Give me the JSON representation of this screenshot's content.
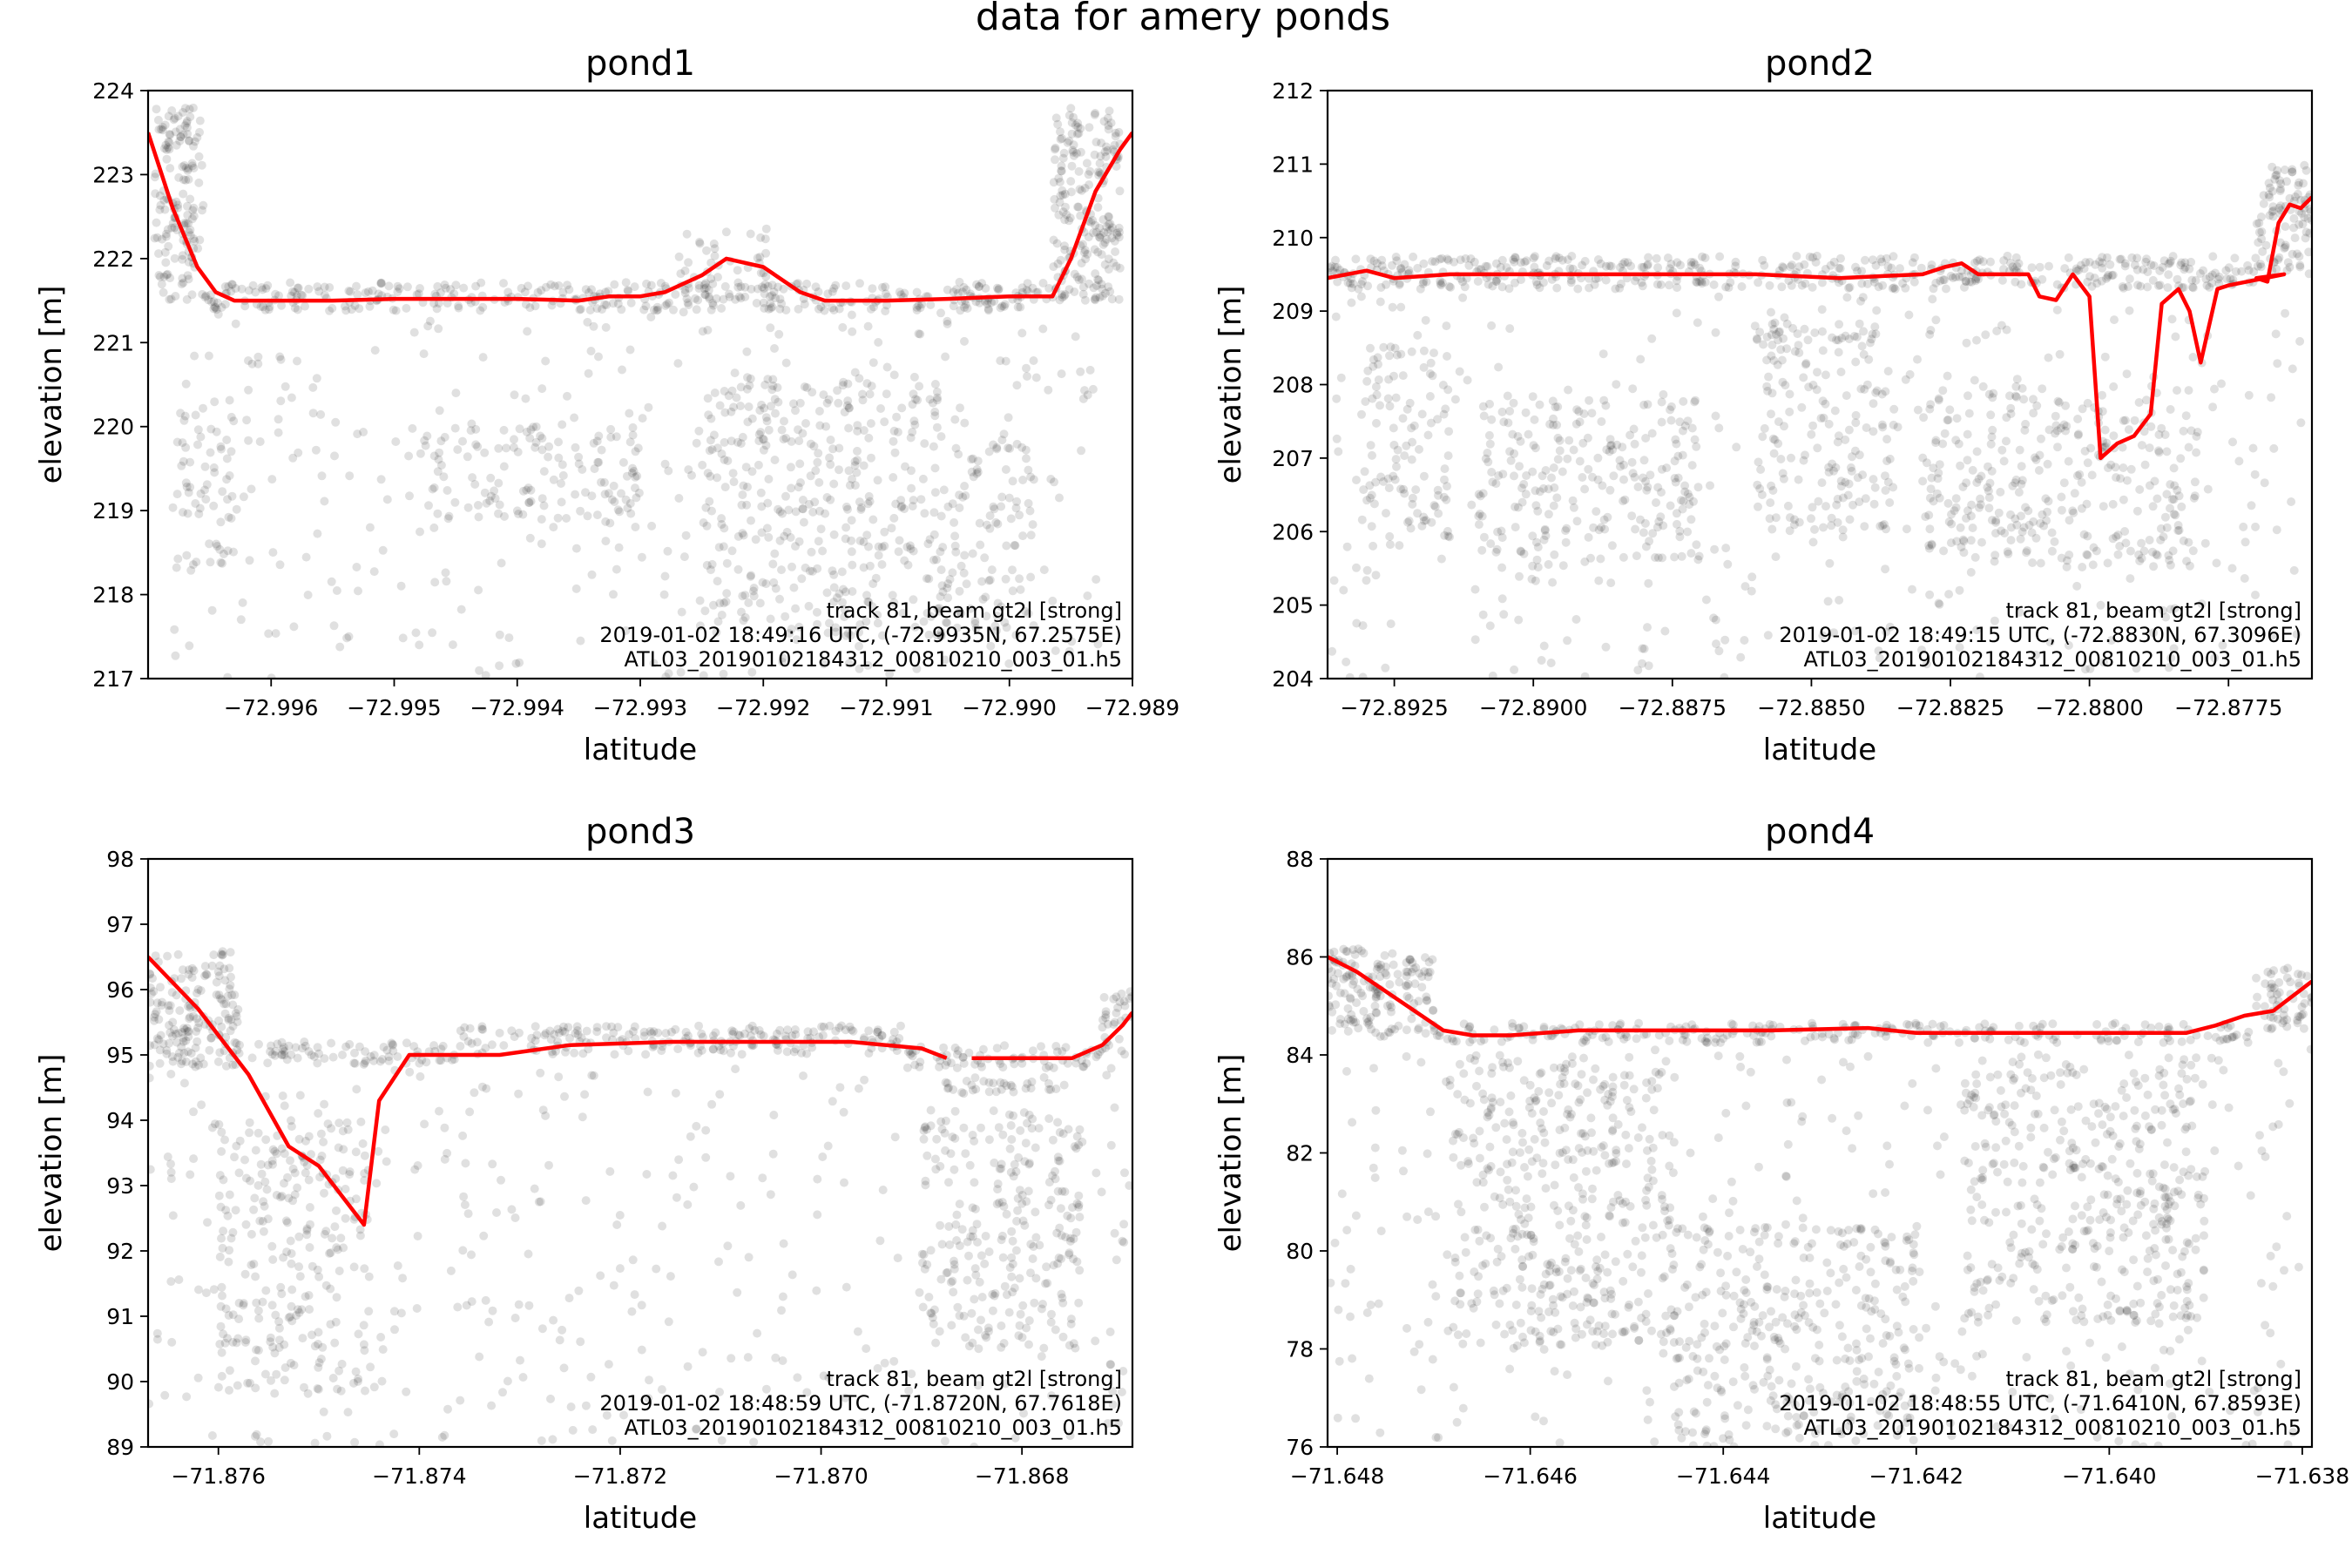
{
  "figure": {
    "title": "data for amery ponds"
  },
  "chart_data": [
    {
      "type": "scatter",
      "title": "pond1",
      "xlabel": "latitude",
      "ylabel": "elevation [m]",
      "xlim": [
        -72.997,
        -72.989
      ],
      "ylim": [
        217,
        224
      ],
      "xticks": [
        -72.996,
        -72.995,
        -72.994,
        -72.993,
        -72.992,
        -72.991,
        -72.99,
        -72.989
      ],
      "xticklabels": [
        "−72.996",
        "−72.995",
        "−72.994",
        "−72.993",
        "−72.992",
        "−72.991",
        "−72.990",
        "−72.989"
      ],
      "yticks": [
        217,
        218,
        219,
        220,
        221,
        222,
        223,
        224
      ],
      "yticklabels": [
        "217",
        "218",
        "219",
        "220",
        "221",
        "222",
        "223",
        "224"
      ],
      "annotation": [
        "track 81, beam gt2l [strong]",
        "2019-01-02 18:49:16 UTC, (-72.9935N, 67.2575E)",
        "ATL03_20190102184312_00810210_003_01.h5"
      ],
      "series": [
        {
          "kind": "line",
          "color": "#ff0000",
          "x": [
            -72.997,
            -72.9968,
            -72.9966,
            -72.99645,
            -72.9963,
            -72.996,
            -72.9955,
            -72.995,
            -72.9945,
            -72.994,
            -72.9935,
            -72.99325,
            -72.993,
            -72.9928,
            -72.9925,
            -72.9923,
            -72.992,
            -72.9917,
            -72.9915,
            -72.991,
            -72.9905,
            -72.99,
            -72.98965,
            -72.9895,
            -72.9893,
            -72.9891,
            -72.989
          ],
          "y": [
            223.5,
            222.6,
            221.9,
            221.6,
            221.5,
            221.5,
            221.5,
            221.52,
            221.52,
            221.52,
            221.5,
            221.55,
            221.55,
            221.6,
            221.8,
            222.0,
            221.9,
            221.6,
            221.5,
            221.5,
            221.52,
            221.55,
            221.55,
            222.0,
            222.8,
            223.3,
            223.5
          ]
        }
      ],
      "photon_regions": [
        {
          "x": [
            -72.99695,
            -72.99655
          ],
          "y": [
            221.5,
            223.8
          ],
          "density": "dense"
        },
        {
          "x": [
            -72.99655,
            -72.98965
          ],
          "y": [
            221.38,
            221.72
          ],
          "density": "dense"
        },
        {
          "x": [
            -72.99275,
            -72.99195
          ],
          "y": [
            221.6,
            222.4
          ],
          "density": "medium"
        },
        {
          "x": [
            -72.98965,
            -72.9891
          ],
          "y": [
            221.5,
            223.8
          ],
          "density": "dense"
        },
        {
          "x": [
            -72.9968,
            -72.9892
          ],
          "y": [
            217.0,
            221.4
          ],
          "density": "sparse"
        },
        {
          "x": [
            -72.9968,
            -72.9963
          ],
          "y": [
            218.3,
            220.2
          ],
          "density": "medium"
        },
        {
          "x": [
            -72.9948,
            -72.993
          ],
          "y": [
            218.8,
            220.0
          ],
          "density": "medium"
        },
        {
          "x": [
            -72.9925,
            -72.9905
          ],
          "y": [
            217.5,
            220.6
          ],
          "density": "medium"
        },
        {
          "x": [
            -72.9905,
            -72.9898
          ],
          "y": [
            217.5,
            219.8
          ],
          "density": "medium"
        }
      ]
    },
    {
      "type": "scatter",
      "title": "pond2",
      "xlabel": "latitude",
      "ylabel": "elevation [m]",
      "xlim": [
        -72.8937,
        -72.876
      ],
      "ylim": [
        204,
        212
      ],
      "xticks": [
        -72.8925,
        -72.89,
        -72.8875,
        -72.885,
        -72.8825,
        -72.88,
        -72.8775
      ],
      "xticklabels": [
        "−72.8925",
        "−72.8900",
        "−72.8875",
        "−72.8850",
        "−72.8825",
        "−72.8800",
        "−72.8775"
      ],
      "yticks": [
        204,
        205,
        206,
        207,
        208,
        209,
        210,
        211,
        212
      ],
      "yticklabels": [
        "204",
        "205",
        "206",
        "207",
        "208",
        "209",
        "210",
        "211",
        "212"
      ],
      "annotation": [
        "track 81, beam gt2l [strong]",
        "2019-01-02 18:49:15 UTC, (-72.8830N, 67.3096E)",
        "ATL03_20190102184312_00810210_003_01.h5"
      ],
      "series": [
        {
          "kind": "line",
          "color": "#ff0000",
          "x": [
            -72.8937,
            -72.893,
            -72.8925,
            -72.8915,
            -72.89,
            -72.888,
            -72.886,
            -72.8845,
            -72.883,
            -72.8826,
            -72.8823,
            -72.882,
            -72.8815,
            -72.8811,
            -72.8809,
            -72.8806,
            -72.8803,
            -72.88,
            -72.8798,
            -72.8795,
            -72.8792,
            -72.8789,
            -72.8787,
            -72.8784,
            -72.8782,
            -72.878,
            -72.8777,
            -72.8775,
            -72.8765,
            -72.877,
            -72.8768,
            -72.8766,
            -72.8764,
            -72.8762,
            -72.876
          ],
          "y": [
            209.45,
            209.55,
            209.45,
            209.5,
            209.5,
            209.5,
            209.5,
            209.45,
            209.5,
            209.6,
            209.65,
            209.5,
            209.5,
            209.5,
            209.2,
            209.15,
            209.5,
            209.2,
            207.0,
            207.2,
            207.3,
            207.6,
            209.1,
            209.3,
            209.0,
            208.3,
            209.3,
            209.35,
            209.5,
            209.45,
            209.4,
            210.2,
            210.45,
            210.4,
            210.55
          ]
        }
      ],
      "photon_regions": [
        {
          "x": [
            -72.8937,
            -72.877
          ],
          "y": [
            209.3,
            209.75
          ],
          "density": "dense"
        },
        {
          "x": [
            -72.877,
            -72.876
          ],
          "y": [
            209.5,
            211.0
          ],
          "density": "dense"
        },
        {
          "x": [
            -72.8937,
            -72.876
          ],
          "y": [
            204.0,
            209.2
          ],
          "density": "sparse"
        },
        {
          "x": [
            -72.893,
            -72.8915
          ],
          "y": [
            205.8,
            208.5
          ],
          "density": "medium"
        },
        {
          "x": [
            -72.891,
            -72.887
          ],
          "y": [
            205.5,
            207.8
          ],
          "density": "medium"
        },
        {
          "x": [
            -72.886,
            -72.8835
          ],
          "y": [
            206.0,
            208.8
          ],
          "density": "medium"
        },
        {
          "x": [
            -72.883,
            -72.878
          ],
          "y": [
            205.5,
            208.0
          ],
          "density": "medium"
        }
      ]
    },
    {
      "type": "scatter",
      "title": "pond3",
      "xlabel": "latitude",
      "ylabel": "elevation [m]",
      "xlim": [
        -71.8767,
        -71.8669
      ],
      "ylim": [
        89,
        98
      ],
      "xticks": [
        -71.876,
        -71.874,
        -71.872,
        -71.87,
        -71.868
      ],
      "xticklabels": [
        "−71.876",
        "−71.874",
        "−71.872",
        "−71.870",
        "−71.868"
      ],
      "yticks": [
        89,
        90,
        91,
        92,
        93,
        94,
        95,
        96,
        97,
        98
      ],
      "yticklabels": [
        "89",
        "90",
        "91",
        "92",
        "93",
        "94",
        "95",
        "96",
        "97",
        "98"
      ],
      "annotation": [
        "track 81, beam gt2l [strong]",
        "2019-01-02 18:48:59 UTC, (-71.8720N, 67.7618E)",
        "ATL03_20190102184312_00810210_003_01.h5"
      ],
      "series": [
        {
          "kind": "line",
          "color": "#ff0000",
          "x": [
            -71.8767,
            -71.8762,
            -71.8757,
            -71.8753,
            -71.875,
            -71.8748,
            -71.87455,
            -71.8744,
            -71.8741,
            -71.8735,
            -71.8732,
            -71.8725,
            -71.8715,
            -71.8705,
            -71.8697,
            -71.869,
            -71.86875
          ],
          "y": [
            96.5,
            95.7,
            94.7,
            93.6,
            93.3,
            92.9,
            92.4,
            94.3,
            95.0,
            95.0,
            95.0,
            95.15,
            95.2,
            95.2,
            95.2,
            95.1,
            94.95
          ]
        },
        {
          "kind": "line",
          "color": "#ff0000",
          "x": [
            -71.8685,
            -71.868,
            -71.8675,
            -71.8672,
            -71.867,
            -71.8669
          ],
          "y": [
            94.95,
            94.95,
            94.95,
            95.15,
            95.45,
            95.65
          ]
        }
      ],
      "photon_regions": [
        {
          "x": [
            -71.8767,
            -71.8758
          ],
          "y": [
            94.8,
            96.6
          ],
          "density": "dense"
        },
        {
          "x": [
            -71.8758,
            -71.8736
          ],
          "y": [
            94.85,
            95.2
          ],
          "density": "dense"
        },
        {
          "x": [
            -71.8736,
            -71.8692
          ],
          "y": [
            95.0,
            95.45
          ],
          "density": "dense"
        },
        {
          "x": [
            -71.8692,
            -71.8672
          ],
          "y": [
            94.8,
            95.15
          ],
          "density": "dense"
        },
        {
          "x": [
            -71.8672,
            -71.8669
          ],
          "y": [
            95.0,
            96.0
          ],
          "density": "dense"
        },
        {
          "x": [
            -71.8688,
            -71.8674
          ],
          "y": [
            94.4,
            94.6
          ],
          "density": "dense"
        },
        {
          "x": [
            -71.8767,
            -71.8669
          ],
          "y": [
            89.0,
            94.8
          ],
          "density": "sparse"
        },
        {
          "x": [
            -71.876,
            -71.8745
          ],
          "y": [
            89.8,
            94.0
          ],
          "density": "medium"
        },
        {
          "x": [
            -71.869,
            -71.8674
          ],
          "y": [
            90.5,
            94.2
          ],
          "density": "medium"
        }
      ]
    },
    {
      "type": "scatter",
      "title": "pond4",
      "xlabel": "latitude",
      "ylabel": "elevation [m]",
      "xlim": [
        -71.6481,
        -71.6379
      ],
      "ylim": [
        76,
        88
      ],
      "xticks": [
        -71.648,
        -71.646,
        -71.644,
        -71.642,
        -71.64,
        -71.638
      ],
      "xticklabels": [
        "−71.648",
        "−71.646",
        "−71.644",
        "−71.642",
        "−71.640",
        "−71.638"
      ],
      "yticks": [
        76,
        78,
        80,
        82,
        84,
        86,
        88
      ],
      "yticklabels": [
        "76",
        "78",
        "80",
        "82",
        "84",
        "86",
        "88"
      ],
      "annotation": [
        "track 81, beam gt2l [strong]",
        "2019-01-02 18:48:55 UTC, (-71.6410N, 67.8593E)",
        "ATL03_20190102184312_00810210_003_01.h5"
      ],
      "series": [
        {
          "kind": "line",
          "color": "#ff0000",
          "x": [
            -71.6481,
            -71.6478,
            -71.6475,
            -71.6472,
            -71.6469,
            -71.6466,
            -71.6462,
            -71.6455,
            -71.6445,
            -71.6435,
            -71.6425,
            -71.642,
            -71.641,
            -71.64,
            -71.6392,
            -71.6389,
            -71.6386,
            -71.6383,
            -71.6381,
            -71.6379
          ],
          "y": [
            86.0,
            85.7,
            85.3,
            84.9,
            84.5,
            84.4,
            84.4,
            84.5,
            84.5,
            84.5,
            84.55,
            84.45,
            84.45,
            84.45,
            84.45,
            84.6,
            84.8,
            84.9,
            85.2,
            85.5
          ]
        }
      ],
      "photon_regions": [
        {
          "x": [
            -71.6481,
            -71.647
          ],
          "y": [
            84.3,
            86.2
          ],
          "density": "dense"
        },
        {
          "x": [
            -71.647,
            -71.6385
          ],
          "y": [
            84.25,
            84.65
          ],
          "density": "dense"
        },
        {
          "x": [
            -71.6385,
            -71.6379
          ],
          "y": [
            84.5,
            85.8
          ],
          "density": "dense"
        },
        {
          "x": [
            -71.6481,
            -71.6379
          ],
          "y": [
            76.0,
            84.2
          ],
          "density": "sparse"
        },
        {
          "x": [
            -71.6468,
            -71.6445
          ],
          "y": [
            78.0,
            84.0
          ],
          "density": "medium"
        },
        {
          "x": [
            -71.6445,
            -71.642
          ],
          "y": [
            76.0,
            80.5
          ],
          "density": "medium"
        },
        {
          "x": [
            -71.6415,
            -71.639
          ],
          "y": [
            78.5,
            84.0
          ],
          "density": "medium"
        }
      ]
    }
  ]
}
